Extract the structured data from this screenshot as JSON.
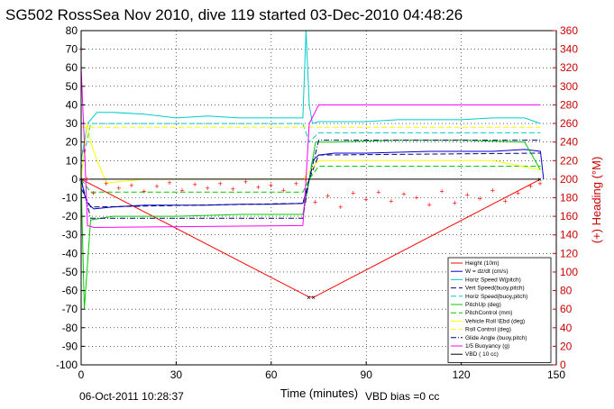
{
  "title": "SG502 RossSea Nov 2010, dive 119 started 03-Dec-2010 04:48:26",
  "footer_date": "06-Oct-2011 10:28:37",
  "footer_bias": "VBD bias =0 cc",
  "chart_data": {
    "type": "line",
    "title": "SG502 RossSea Nov 2010, dive 119 started 03-Dec-2010 04:48:26",
    "xlabel": "Time (minutes)",
    "ylabel": "",
    "y2label": "(+) Heading (°M)",
    "xlim": [
      0,
      150
    ],
    "ylim": [
      -100,
      80
    ],
    "y2lim": [
      0,
      360
    ],
    "xticks": [
      0,
      30,
      60,
      90,
      120,
      150
    ],
    "yticks": [
      -100,
      -90,
      -80,
      -70,
      -60,
      -50,
      -40,
      -30,
      -20,
      -10,
      0,
      10,
      20,
      30,
      40,
      50,
      60,
      70,
      80
    ],
    "y2ticks": [
      0,
      20,
      40,
      60,
      80,
      100,
      120,
      140,
      160,
      180,
      200,
      220,
      240,
      260,
      280,
      300,
      320,
      340,
      360
    ],
    "grid": true,
    "legend_position": "bottom-right",
    "series": [
      {
        "name": "Height (10m)",
        "color": "#ff0000",
        "style": "solid",
        "x": [
          0,
          72,
          73.5,
          145
        ],
        "y": [
          0,
          -63.5,
          -63.5,
          0
        ]
      },
      {
        "name": "W = dz/dt (cm/s)",
        "color": "#0000cc",
        "style": "solid",
        "x": [
          0,
          1,
          2,
          4,
          10,
          20,
          30,
          40,
          50,
          60,
          70,
          71.5,
          73,
          75,
          80,
          90,
          100,
          110,
          120,
          130,
          140,
          145,
          146
        ],
        "y": [
          0,
          -8,
          -13,
          -16,
          -15,
          -14,
          -14,
          -14,
          -13.5,
          -13.5,
          -13,
          -5,
          10,
          13,
          14,
          14,
          14.5,
          15,
          15,
          15,
          16,
          15,
          0
        ]
      },
      {
        "name": "Horiz Speed W(pitch)",
        "color": "#00cccc",
        "style": "solid",
        "x": [
          0,
          2,
          5,
          10,
          20,
          30,
          40,
          50,
          60,
          70,
          71,
          72,
          73,
          75,
          80,
          90,
          100,
          110,
          120,
          130,
          140,
          145
        ],
        "y": [
          10,
          30,
          36,
          36,
          35,
          33,
          34,
          33,
          33,
          33,
          80,
          40,
          30,
          31,
          31,
          31,
          32,
          32,
          32,
          33,
          33,
          30
        ]
      },
      {
        "name": "Vert Speed(buoy,pitch)",
        "color": "#000080",
        "style": "dashed",
        "x": [
          0,
          3,
          70,
          72,
          75,
          145
        ],
        "y": [
          -5,
          -15,
          -13,
          0,
          13,
          14
        ]
      },
      {
        "name": "Horiz Speed(buoy,pitch)",
        "color": "#00cccc",
        "style": "dashed",
        "x": [
          0,
          3,
          70,
          72,
          75,
          145
        ],
        "y": [
          5,
          30,
          30,
          20,
          25,
          25
        ]
      },
      {
        "name": "PitchUp (deg)",
        "color": "#00cc00",
        "style": "solid",
        "x": [
          0,
          1,
          3,
          10,
          30,
          50,
          70,
          72,
          74,
          80,
          100,
          120,
          140,
          145
        ],
        "y": [
          0,
          -70,
          -22,
          -20,
          -20,
          -19,
          -19,
          0,
          20,
          20,
          21,
          21,
          20,
          5
        ]
      },
      {
        "name": "PitchControl (mm)",
        "color": "#00cc00",
        "style": "dashed",
        "x": [
          0,
          3,
          70,
          72,
          75,
          145
        ],
        "y": [
          0,
          -7,
          -7,
          0,
          7,
          7
        ]
      },
      {
        "name": "Vehicle Roll \\Ebd (deg)",
        "color": "#ffff00",
        "style": "solid",
        "x": [
          0,
          2,
          3,
          5,
          8,
          20,
          40,
          60,
          70,
          75,
          90,
          110,
          130,
          145
        ],
        "y": [
          0,
          30,
          20,
          10,
          -2,
          0,
          0,
          0,
          0,
          10,
          10,
          10,
          10,
          5
        ]
      },
      {
        "name": "Roll Control (deg)",
        "color": "#ffff00",
        "style": "dashed",
        "x": [
          0,
          145
        ],
        "y": [
          28,
          28
        ]
      },
      {
        "name": "Glide Angle (buoy,pitch)",
        "color": "#000080",
        "style": "dashdot",
        "x": [
          0,
          3,
          70,
          72,
          75,
          145
        ],
        "y": [
          0,
          -21,
          -21,
          0,
          21,
          21
        ]
      },
      {
        "name": "1/5 Buoyancy (g)",
        "color": "#ff00ff",
        "style": "solid",
        "x": [
          0,
          1,
          2,
          4,
          70,
          71,
          72,
          75,
          145
        ],
        "y": [
          60,
          20,
          -25,
          -26,
          -25,
          0,
          30,
          40,
          40
        ]
      },
      {
        "name": "VBD ( 10 cc)",
        "color": "#000000",
        "style": "solid",
        "x": [
          0,
          145
        ],
        "y": [
          0,
          0
        ]
      }
    ],
    "heading": {
      "name": "(+) Heading (°M)",
      "color": "#ff0000",
      "axis": "right",
      "x": [
        0,
        1,
        2,
        4,
        8,
        12,
        16,
        20,
        24,
        28,
        32,
        36,
        40,
        44,
        48,
        52,
        56,
        60,
        64,
        68,
        71,
        74,
        78,
        82,
        86,
        90,
        94,
        98,
        102,
        106,
        110,
        114,
        118,
        122,
        126,
        130,
        134,
        138,
        142,
        145
      ],
      "y": [
        340,
        230,
        200,
        185,
        195,
        190,
        193,
        187,
        192,
        196,
        188,
        194,
        190,
        195,
        189,
        197,
        191,
        193,
        188,
        195,
        200,
        175,
        182,
        170,
        185,
        178,
        186,
        176,
        184,
        180,
        172,
        187,
        174,
        183,
        179,
        188,
        176,
        185,
        192,
        195
      ]
    }
  }
}
